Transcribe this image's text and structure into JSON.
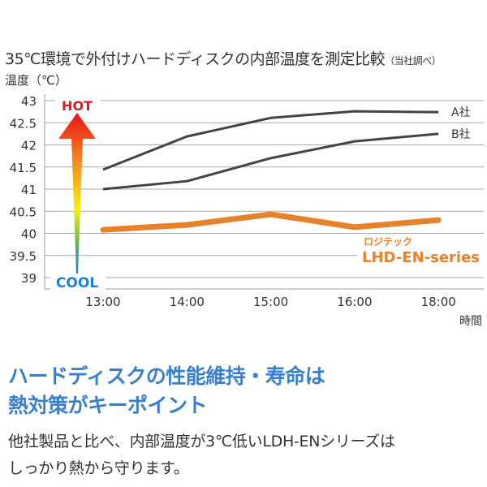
{
  "chart_data": {
    "type": "line",
    "title": "35℃環境で外付けハードディスクの内部温度を測定比較",
    "title_note": "（当社調べ）",
    "ylabel": "温度（℃）",
    "xlabel": "時間",
    "categories": [
      "13:00",
      "14:00",
      "15:00",
      "16:00",
      "18:00"
    ],
    "ylim": [
      39,
      43
    ],
    "yticks": [
      "43",
      "42.5",
      "42",
      "41.5",
      "41",
      "40.5",
      "40",
      "39.5",
      "39"
    ],
    "grid": true,
    "series": [
      {
        "name": "A社",
        "values": [
          41.44,
          42.19,
          42.61,
          42.76,
          42.74
        ],
        "color": "#444444"
      },
      {
        "name": "B社",
        "values": [
          41.0,
          41.18,
          41.7,
          42.08,
          42.25
        ],
        "color": "#444444"
      },
      {
        "name": "ロジテック LHD-EN-series",
        "brand": "ロジテック",
        "product": "LHD-EN-series",
        "values": [
          40.08,
          40.19,
          40.43,
          40.14,
          40.3
        ],
        "color": "#e8822a"
      }
    ],
    "annotations": {
      "hot": "HOT",
      "cool": "COOL",
      "hot_color": "#e8141c",
      "cool_color": "#1e7fd8"
    }
  },
  "text": {
    "headline_1": "ハードディスクの性能維持・寿命は",
    "headline_2": "熱対策がキーポイント",
    "body_1": "他社製品と比べ、内部温度が3℃低いLDH-ENシリーズは",
    "body_2": "しっかり熱から守ります。"
  }
}
